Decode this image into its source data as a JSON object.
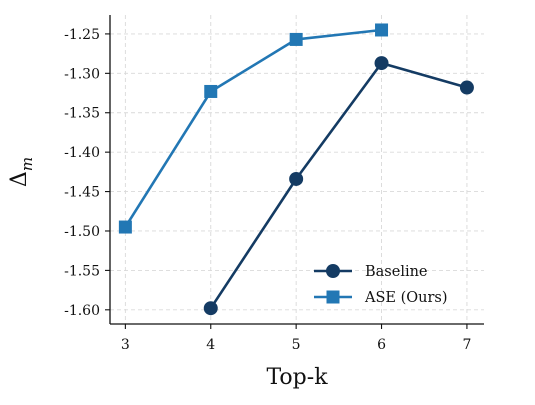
{
  "chart_data": {
    "type": "line",
    "title": "",
    "xlabel": "Top-k",
    "ylabel_symbol": "Δ",
    "ylabel_subscript": "m",
    "x_ticks": [
      3,
      4,
      5,
      6,
      7
    ],
    "x_tick_labels": [
      "3",
      "4",
      "5",
      "6",
      "7"
    ],
    "y_ticks": [
      -1.25,
      -1.3,
      -1.35,
      -1.4,
      -1.45,
      -1.5,
      -1.55,
      -1.6
    ],
    "y_tick_labels": [
      "-1.25",
      "-1.30",
      "-1.35",
      "-1.40",
      "-1.45",
      "-1.50",
      "-1.55",
      "-1.60"
    ],
    "xlim": [
      2.82,
      7.2
    ],
    "ylim": [
      -1.618,
      -1.226
    ],
    "grid": true,
    "legend_position": "lower-right",
    "series": [
      {
        "name": "Baseline",
        "color": "#143b63",
        "marker": "circle",
        "x": [
          4,
          5,
          6,
          7
        ],
        "y": [
          -1.598,
          -1.434,
          -1.287,
          -1.318
        ]
      },
      {
        "name": "ASE (Ours)",
        "color": "#2277b4",
        "marker": "square",
        "x": [
          3,
          4,
          5,
          6
        ],
        "y": [
          -1.495,
          -1.323,
          -1.257,
          -1.245
        ]
      }
    ]
  }
}
